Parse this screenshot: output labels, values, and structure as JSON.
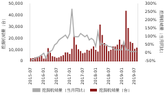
{
  "chart_data": {
    "type": "bar",
    "categories": [
      "2015-07",
      null,
      null,
      null,
      null,
      null,
      "2016-01",
      null,
      null,
      null,
      null,
      null,
      "2016-07",
      null,
      null,
      null,
      null,
      null,
      "2017-01",
      null,
      null,
      null,
      null,
      null,
      "2017-07",
      null,
      null,
      null,
      null,
      null,
      "2018-01",
      null,
      null,
      null,
      null,
      null,
      "2018-07",
      null,
      null,
      null,
      null,
      null,
      "2019-01",
      null,
      null,
      null,
      null,
      null,
      "2019-07",
      null
    ],
    "series": [
      {
        "name": "挖掘机销量（台）",
        "type": "bar",
        "color": "#8b1a1a",
        "values": [
          2800,
          2900,
          3500,
          3800,
          3900,
          5000,
          2500,
          3700,
          11500,
          7500,
          4500,
          4000,
          3000,
          3500,
          4500,
          5500,
          7800,
          7800,
          6500,
          11000,
          22000,
          14500,
          10500,
          9000,
          7000,
          7500,
          10000,
          9500,
          11000,
          13000,
          10000,
          8500,
          32000,
          23000,
          16000,
          13500,
          9000,
          10000,
          13000,
          13000,
          14500,
          19000,
          14500,
          14500,
          44000,
          29000,
          17000,
          16000,
          11000,
          12000
        ]
      },
      {
        "name": "挖掘机销量（当月同比）",
        "type": "line",
        "color": "#aaaaaa",
        "axis": "y2",
        "values": [
          -45,
          -40,
          -30,
          -25,
          -20,
          -10,
          0,
          -30,
          5,
          10,
          20,
          50,
          60,
          80,
          90,
          100,
          110,
          90,
          120,
          270,
          100,
          100,
          100,
          120,
          110,
          100,
          110,
          80,
          90,
          80,
          40,
          130,
          50,
          60,
          50,
          50,
          40,
          40,
          30,
          20,
          20,
          20,
          20,
          70,
          20,
          20,
          10,
          10,
          10,
          10
        ]
      }
    ],
    "y_label": "挖掘机销量（台）",
    "y2_label": "挖掘机销量（当月同比）",
    "ylim": [
      0,
      50000
    ],
    "yticks": [
      0,
      {
        "value": 10000,
        "label": "10,000"
      },
      {
        "value": 20000,
        "label": "20,000"
      },
      {
        "value": 30000,
        "label": "30,000"
      },
      {
        "value": 40000,
        "label": "40,000"
      },
      {
        "value": 50000,
        "label": "50,000"
      }
    ],
    "y2lim": [
      -50,
      300
    ],
    "y2ticks": [
      {
        "value": -50,
        "label": "-50%"
      },
      {
        "value": 0,
        "label": "0%"
      },
      {
        "value": 50,
        "label": "50%"
      },
      {
        "value": 100,
        "label": "100%"
      },
      {
        "value": 150,
        "label": "150%"
      },
      {
        "value": 200,
        "label": "200%"
      },
      {
        "value": 250,
        "label": "250%"
      },
      {
        "value": 300,
        "label": "300%"
      }
    ],
    "grid": false,
    "legend": "bottom"
  }
}
